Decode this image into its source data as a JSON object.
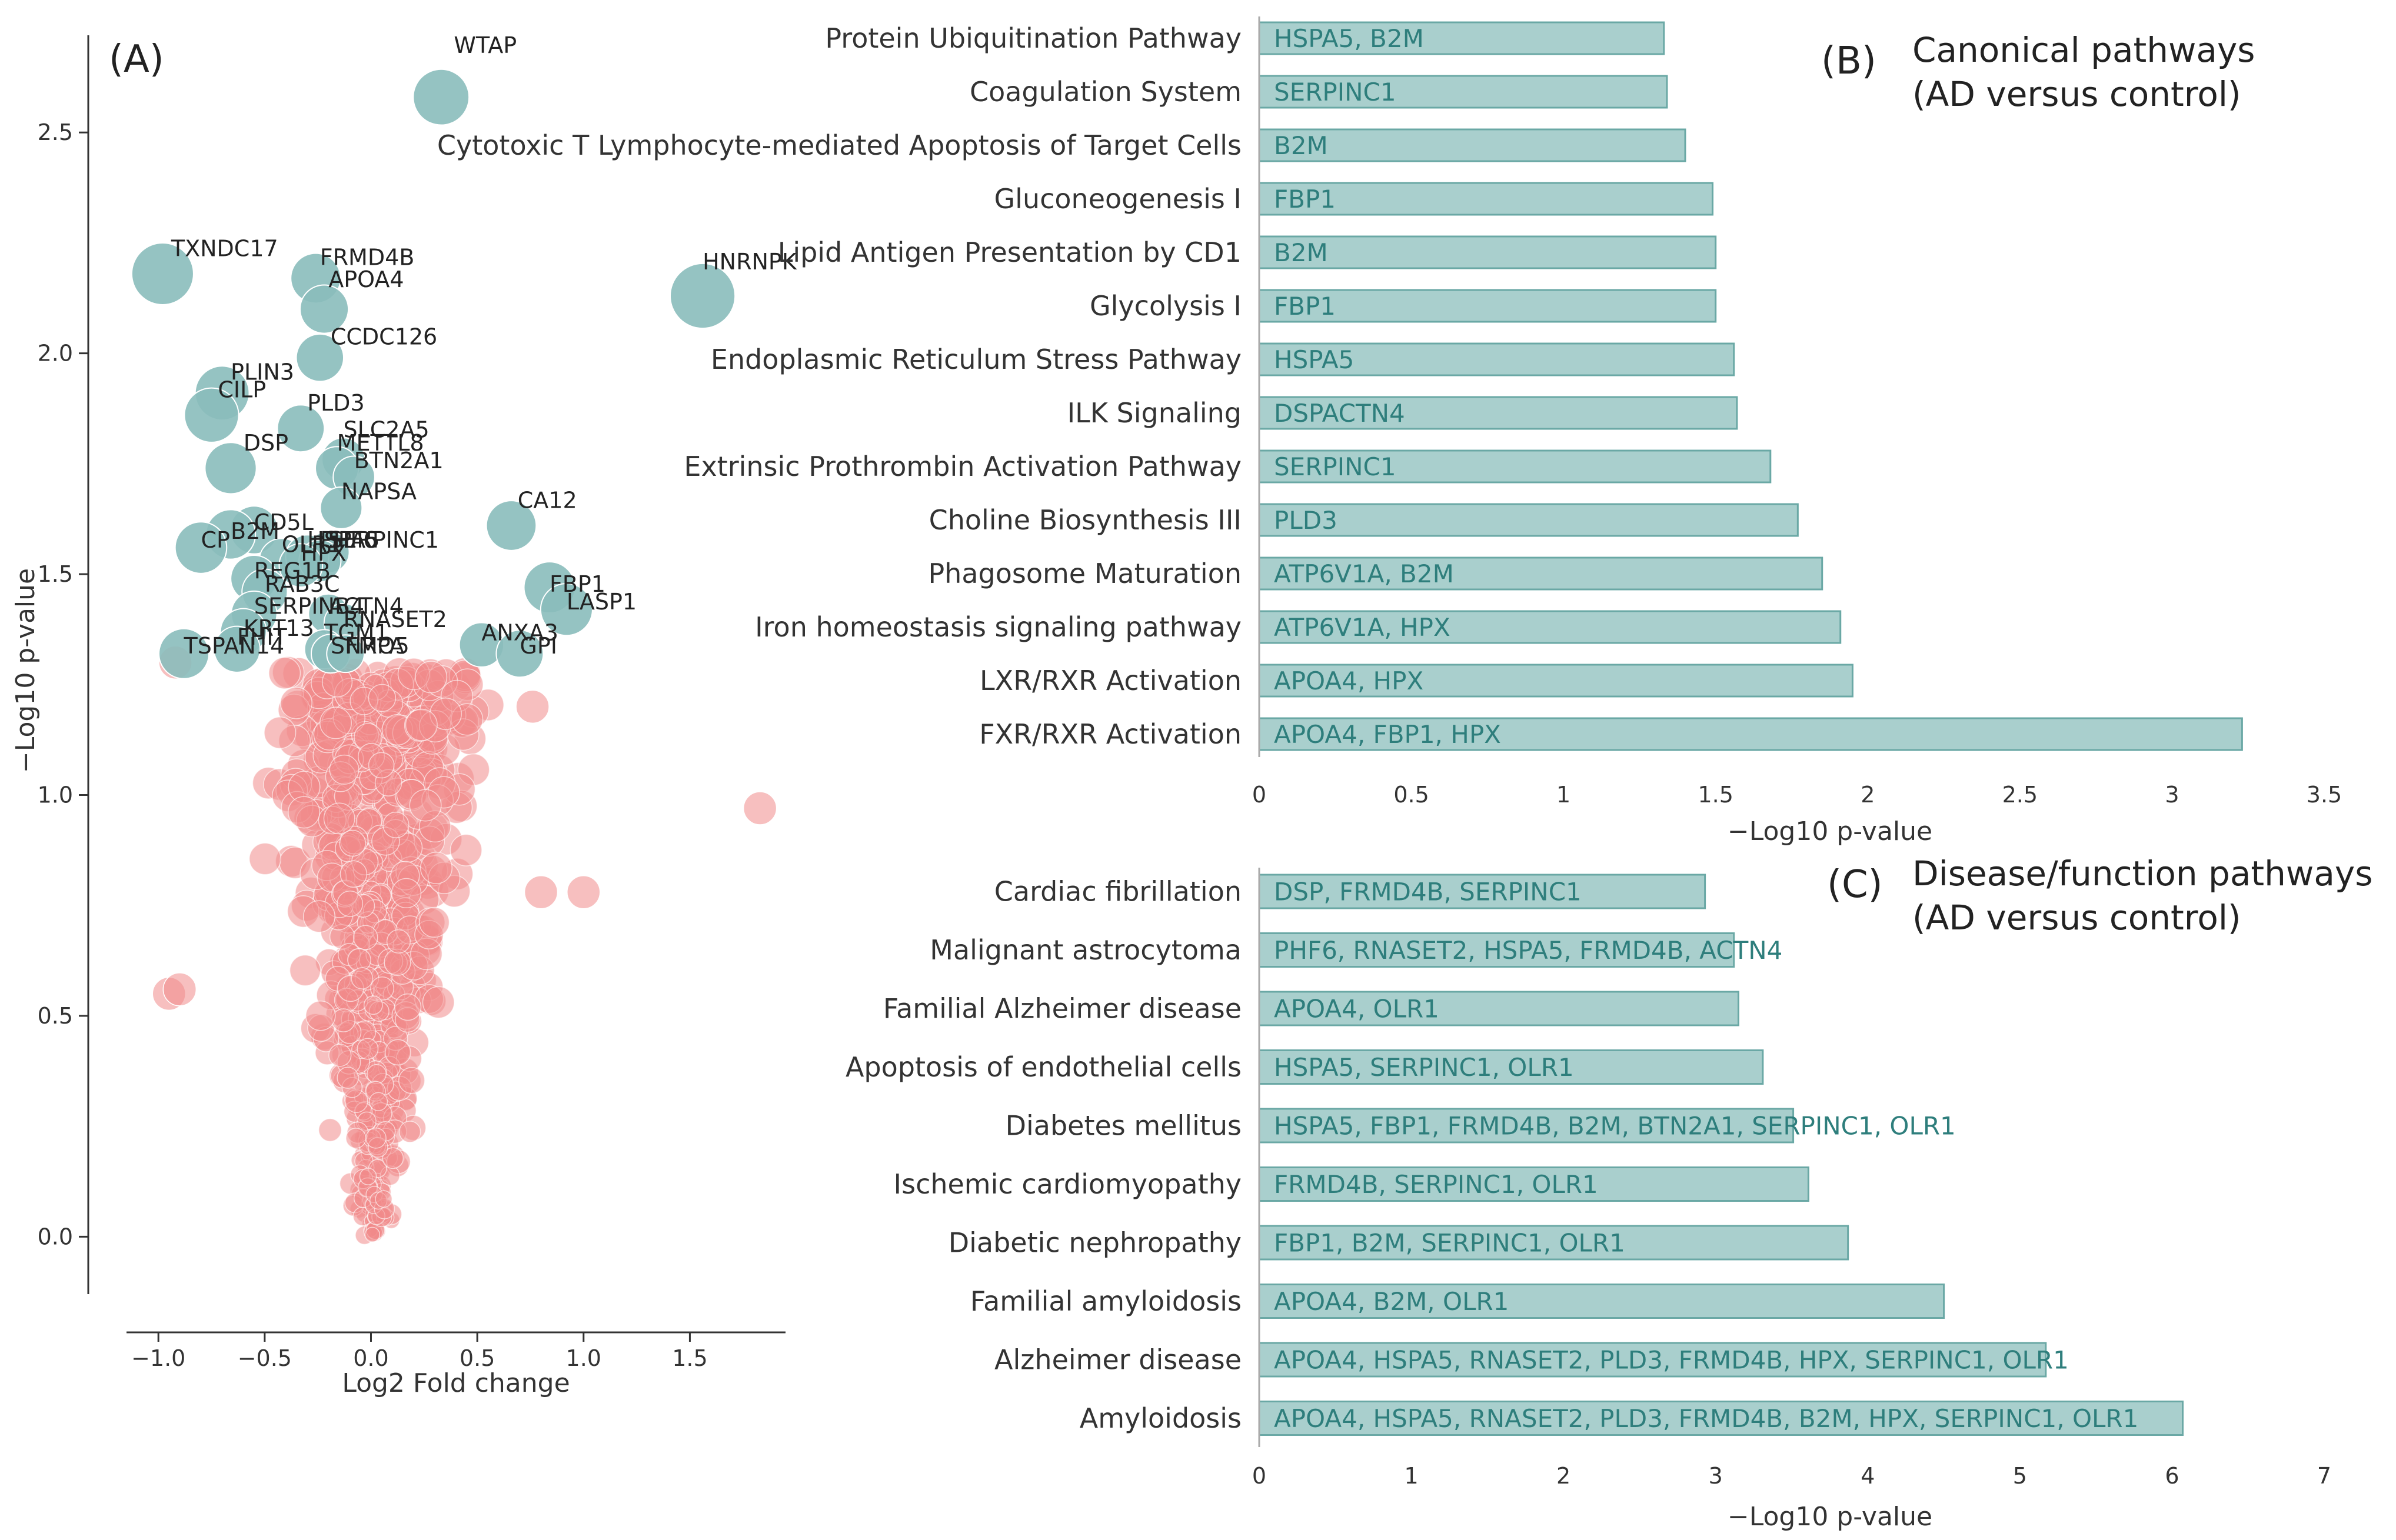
{
  "colors": {
    "significant": "#89bdbb",
    "nonsignificant": "#f08a8a",
    "bar_fill": "#a9cfcd",
    "bar_stroke": "#6aa8a5",
    "bar_text": "#2e7e7c",
    "axis": "#333333"
  },
  "chart_data": [
    {
      "panel": "(A)",
      "type": "scatter",
      "xlabel": "Log2 Fold change",
      "ylabel": "−Log10 p-value",
      "xlim": [
        -1.15,
        1.95
      ],
      "ylim": [
        -0.13,
        2.72
      ],
      "xticks": [
        -1.0,
        -0.5,
        0.0,
        0.5,
        1.0,
        1.5
      ],
      "xtick_labels": [
        "−1.0",
        "−0.5",
        "0.0",
        "0.5",
        "1.0",
        "1.5"
      ],
      "yticks": [
        0.0,
        0.5,
        1.0,
        1.5,
        2.0,
        2.5
      ],
      "ytick_labels": [
        "0.0",
        "0.5",
        "1.0",
        "1.5",
        "2.0",
        "2.5"
      ],
      "labeled_points": [
        {
          "gene": "WTAP",
          "x": 0.33,
          "y": 2.58,
          "label_dx": 0.06,
          "label_dy": 0.1
        },
        {
          "gene": "TXNDC17",
          "x": -0.98,
          "y": 2.18,
          "label_dx": 0.04,
          "label_dy": 0.04
        },
        {
          "gene": "FRMD4B",
          "x": -0.26,
          "y": 2.17,
          "label_dx": 0.02,
          "label_dy": 0.03
        },
        {
          "gene": "APOA4",
          "x": -0.22,
          "y": 2.1,
          "label_dx": 0.02,
          "label_dy": 0.05
        },
        {
          "gene": "HNRNPK",
          "x": 1.56,
          "y": 2.13,
          "label_dx": 0.0,
          "label_dy": 0.06
        },
        {
          "gene": "CCDC126",
          "x": -0.24,
          "y": 1.99,
          "label_dx": 0.05,
          "label_dy": 0.03
        },
        {
          "gene": "PLIN3",
          "x": -0.7,
          "y": 1.91,
          "label_dx": 0.04,
          "label_dy": 0.03
        },
        {
          "gene": "CILP",
          "x": -0.75,
          "y": 1.86,
          "label_dx": 0.03,
          "label_dy": 0.04
        },
        {
          "gene": "PLD3",
          "x": -0.33,
          "y": 1.83,
          "label_dx": 0.03,
          "label_dy": 0.04
        },
        {
          "gene": "DSP",
          "x": -0.66,
          "y": 1.74,
          "label_dx": 0.06,
          "label_dy": 0.04
        },
        {
          "gene": "SLC2A5",
          "x": -0.13,
          "y": 1.76,
          "label_dx": 0.0,
          "label_dy": 0.05
        },
        {
          "gene": "METTL8",
          "x": -0.16,
          "y": 1.74,
          "label_dx": 0.0,
          "label_dy": 0.04
        },
        {
          "gene": "BTN2A1",
          "x": -0.08,
          "y": 1.72,
          "label_dx": 0.0,
          "label_dy": 0.02
        },
        {
          "gene": "NAPSA",
          "x": -0.14,
          "y": 1.65,
          "label_dx": 0.0,
          "label_dy": 0.02
        },
        {
          "gene": "CA12",
          "x": 0.66,
          "y": 1.61,
          "label_dx": 0.03,
          "label_dy": 0.04
        },
        {
          "gene": "CD5L",
          "x": -0.55,
          "y": 1.6,
          "label_dx": 0.0,
          "label_dy": 0.0
        },
        {
          "gene": "B2M",
          "x": -0.66,
          "y": 1.59,
          "label_dx": 0.0,
          "label_dy": -0.01
        },
        {
          "gene": "SERPINC1",
          "x": -0.2,
          "y": 1.55,
          "label_dx": 0.0,
          "label_dy": 0.01
        },
        {
          "gene": "OLR1",
          "x": -0.42,
          "y": 1.53,
          "label_dx": 0.0,
          "label_dy": 0.02
        },
        {
          "gene": "HSPA5",
          "x": -0.3,
          "y": 1.54,
          "label_dx": 0.0,
          "label_dy": 0.02
        },
        {
          "gene": "PHF6",
          "x": -0.24,
          "y": 1.53,
          "label_dx": 0.0,
          "label_dy": 0.03
        },
        {
          "gene": "HPX",
          "x": -0.33,
          "y": 1.52,
          "label_dx": 0.0,
          "label_dy": 0.01
        },
        {
          "gene": "CP",
          "x": -0.8,
          "y": 1.56,
          "label_dx": 0.0,
          "label_dy": 0.0
        },
        {
          "gene": "FBP1",
          "x": 0.84,
          "y": 1.47,
          "label_dx": 0.0,
          "label_dy": -0.01
        },
        {
          "gene": "LASP1",
          "x": 0.92,
          "y": 1.42,
          "label_dx": 0.0,
          "label_dy": 0.0
        },
        {
          "gene": "REG1B",
          "x": -0.55,
          "y": 1.49,
          "label_dx": 0.0,
          "label_dy": 0.0
        },
        {
          "gene": "RAB3C",
          "x": -0.5,
          "y": 1.46,
          "label_dx": 0.0,
          "label_dy": 0.0
        },
        {
          "gene": "SERPINB4",
          "x": -0.55,
          "y": 1.41,
          "label_dx": 0.0,
          "label_dy": 0.0
        },
        {
          "gene": "ACTN4",
          "x": -0.2,
          "y": 1.41,
          "label_dx": 0.0,
          "label_dy": 0.0
        },
        {
          "gene": "RNASET2",
          "x": -0.13,
          "y": 1.39,
          "label_dx": 0.0,
          "label_dy": -0.01
        },
        {
          "gene": "KRT13",
          "x": -0.6,
          "y": 1.37,
          "label_dx": 0.0,
          "label_dy": -0.01
        },
        {
          "gene": "FHIT",
          "x": -0.63,
          "y": 1.33,
          "label_dx": 0.0,
          "label_dy": 0.01
        },
        {
          "gene": "ANXA3",
          "x": 0.52,
          "y": 1.34,
          "label_dx": 0.0,
          "label_dy": 0.01
        },
        {
          "gene": "GPI",
          "x": 0.7,
          "y": 1.32,
          "label_dx": 0.0,
          "label_dy": 0.0
        },
        {
          "gene": "TSPAN14",
          "x": -0.88,
          "y": 1.32,
          "label_dx": 0.0,
          "label_dy": 0.0
        },
        {
          "gene": "TGM1",
          "x": -0.22,
          "y": 1.33,
          "label_dx": 0.0,
          "label_dy": 0.02
        },
        {
          "gene": "SNRPA",
          "x": -0.19,
          "y": 1.32,
          "label_dx": 0.0,
          "label_dy": 0.0
        },
        {
          "gene": "FMO5",
          "x": -0.12,
          "y": 1.32,
          "label_dx": 0.0,
          "label_dy": 0.0
        }
      ]
    },
    {
      "panel": "(B)",
      "type": "bar",
      "orientation": "horizontal",
      "title": "Canonical pathways",
      "title_line2": "(AD versus control)",
      "xlabel": "−Log10 p-value",
      "xlim": [
        0,
        3.5
      ],
      "xticks": [
        0,
        0.5,
        1,
        1.5,
        2,
        2.5,
        3,
        3.5
      ],
      "xtick_labels": [
        "0",
        "0.5",
        "1",
        "1.5",
        "2",
        "2.5",
        "3",
        "3.5"
      ],
      "categories": [
        "Protein Ubiquitination Pathway",
        "Coagulation System",
        "Cytotoxic T Lymphocyte-mediated Apoptosis of Target Cells",
        "Gluconeogenesis I",
        "Lipid Antigen Presentation by CD1",
        "Glycolysis I",
        "Endoplasmic Reticulum Stress Pathway",
        "ILK Signaling",
        "Extrinsic Prothrombin Activation Pathway",
        "Choline Biosynthesis III",
        "Phagosome Maturation",
        "Iron homeostasis signaling pathway",
        "LXR/RXR Activation",
        "FXR/RXR Activation"
      ],
      "values": [
        1.33,
        1.34,
        1.4,
        1.49,
        1.5,
        1.5,
        1.56,
        1.57,
        1.68,
        1.77,
        1.85,
        1.91,
        1.95,
        3.23
      ],
      "bar_labels": [
        "HSPA5, B2M",
        "SERPINC1",
        "B2M",
        "FBP1",
        "B2M",
        "FBP1",
        "HSPA5",
        "DSPACTN4",
        "SERPINC1",
        "PLD3",
        "ATP6V1A, B2M",
        "ATP6V1A, HPX",
        "APOA4, HPX",
        "APOA4, FBP1, HPX"
      ]
    },
    {
      "panel": "(C)",
      "type": "bar",
      "orientation": "horizontal",
      "title": "Disease/function pathways",
      "title_line2": "(AD versus control)",
      "xlabel": "−Log10 p-value",
      "xlim": [
        0,
        7
      ],
      "xticks": [
        0,
        1,
        2,
        3,
        4,
        5,
        6,
        7
      ],
      "xtick_labels": [
        "0",
        "1",
        "2",
        "3",
        "4",
        "5",
        "6",
        "7"
      ],
      "categories": [
        "Cardiac fibrillation",
        "Malignant astrocytoma",
        "Familial Alzheimer disease",
        "Apoptosis of endothelial cells",
        "Diabetes mellitus",
        "Ischemic cardiomyopathy",
        "Diabetic nephropathy",
        "Familial amyloidosis",
        "Alzheimer disease",
        "Amyloidosis"
      ],
      "values": [
        2.93,
        3.12,
        3.15,
        3.31,
        3.51,
        3.61,
        3.87,
        4.5,
        5.17,
        6.07
      ],
      "bar_labels": [
        "DSP, FRMD4B, SERPINC1",
        "PHF6, RNASET2, HSPA5, FRMD4B, ACTN4",
        "APOA4, OLR1",
        "HSPA5, SERPINC1, OLR1",
        "HSPA5, FBP1, FRMD4B, B2M, BTN2A1, SERPINC1, OLR1",
        "FRMD4B, SERPINC1, OLR1",
        "FBP1, B2M, SERPINC1, OLR1",
        "APOA4, B2M, OLR1",
        "APOA4, HSPA5, RNASET2, PLD3, FRMD4B, HPX, SERPINC1, OLR1",
        "APOA4, HSPA5, RNASET2, PLD3, FRMD4B, B2M, HPX, SERPINC1, OLR1"
      ]
    }
  ]
}
